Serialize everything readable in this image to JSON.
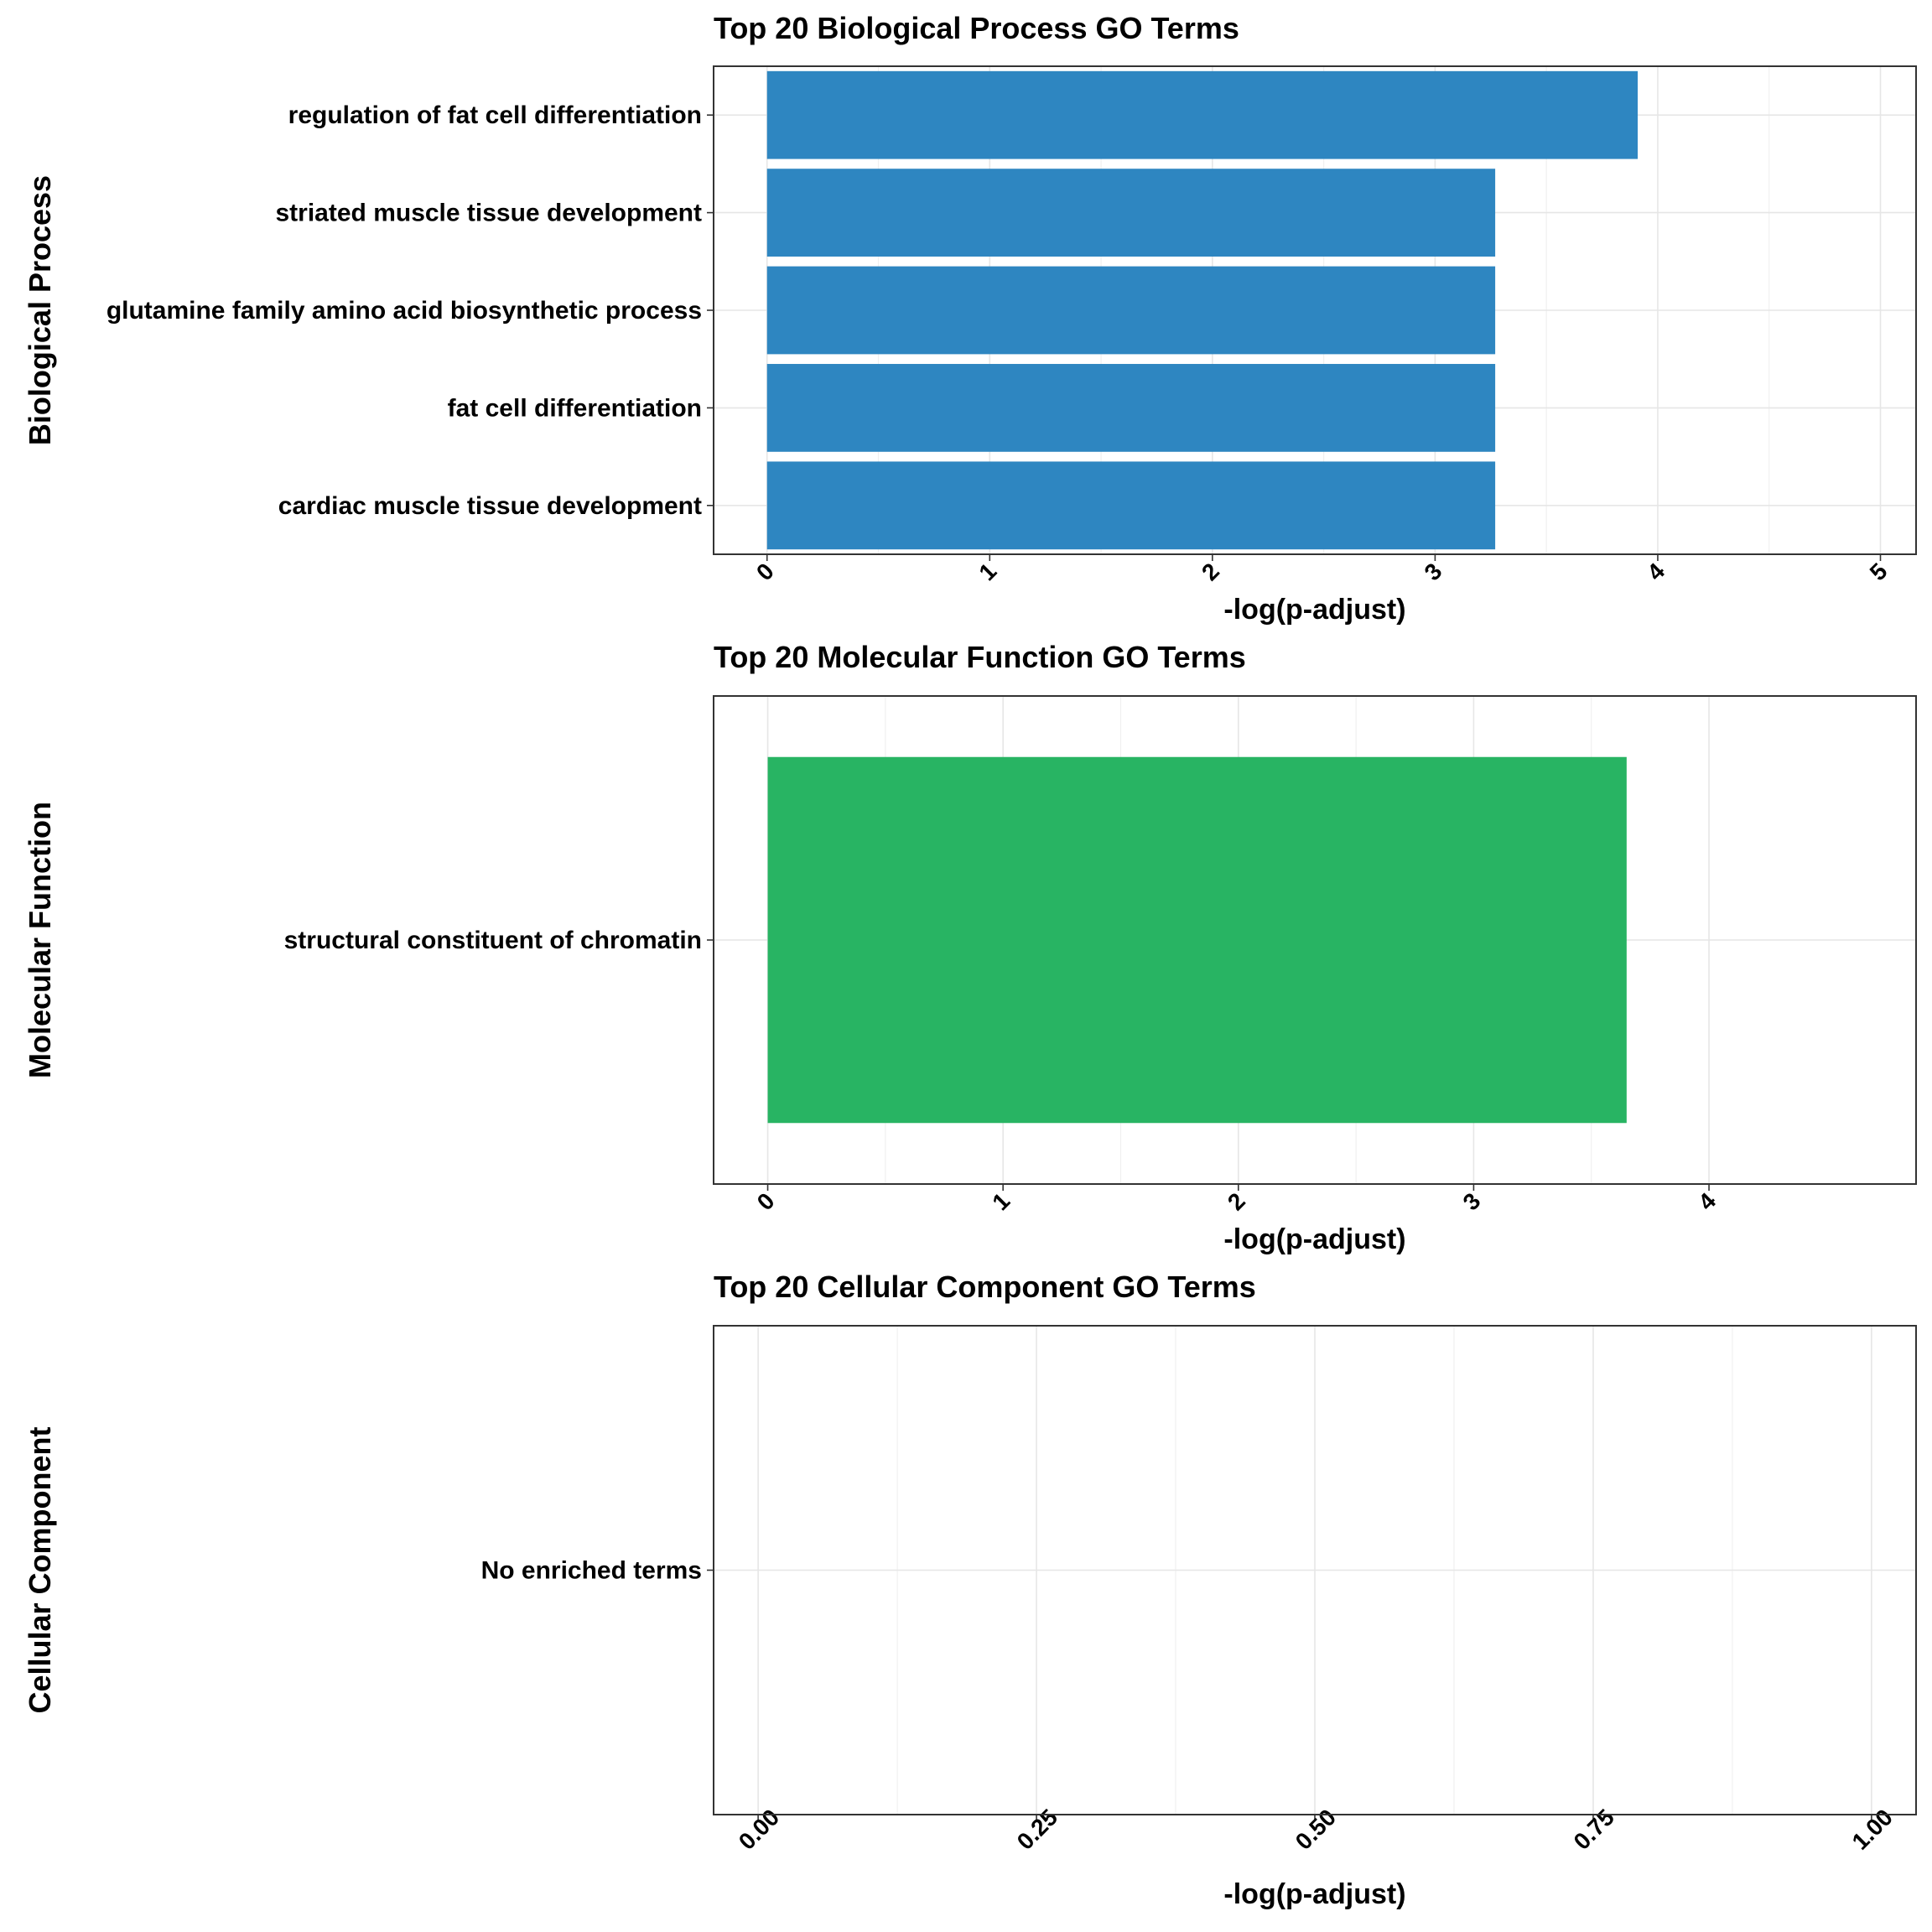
{
  "chart_data": [
    {
      "type": "bar",
      "orientation": "horizontal",
      "title": "Top 20 Biological Process GO Terms",
      "xlabel": "-log(p-adjust)",
      "ylabel": "Biological Process",
      "xlim": [
        -0.24,
        5.16
      ],
      "x_ticks": [
        "0",
        "1",
        "2",
        "3",
        "4",
        "5"
      ],
      "categories": [
        "regulation of fat cell differentiation",
        "striated muscle tissue development",
        "glutamine family amino acid biosynthetic process",
        "fat cell differentiation",
        "cardiac muscle tissue development"
      ],
      "values": [
        3.91,
        3.27,
        3.27,
        3.27,
        3.27
      ],
      "color": "#2E86C1",
      "grid": true,
      "legend": "none"
    },
    {
      "type": "bar",
      "orientation": "horizontal",
      "title": "Top 20 Molecular Function GO Terms",
      "xlabel": "-log(p-adjust)",
      "ylabel": "Molecular Function",
      "xlim": [
        -0.23,
        4.88
      ],
      "x_ticks": [
        "0",
        "1",
        "2",
        "3",
        "4"
      ],
      "categories": [
        "structural constituent of chromatin"
      ],
      "values": [
        3.65
      ],
      "color": "#28B463",
      "grid": true,
      "legend": "none"
    },
    {
      "type": "bar",
      "orientation": "horizontal",
      "title": "Top 20 Cellular Component GO Terms",
      "xlabel": "-log(p-adjust)",
      "ylabel": "Cellular Component",
      "xlim": [
        -0.04,
        1.04
      ],
      "x_ticks": [
        "0.00",
        "0.25",
        "0.50",
        "0.75",
        "1.00"
      ],
      "categories": [
        "No enriched terms"
      ],
      "values": [
        0
      ],
      "color": "#E67E22",
      "grid": true,
      "legend": "none"
    }
  ]
}
